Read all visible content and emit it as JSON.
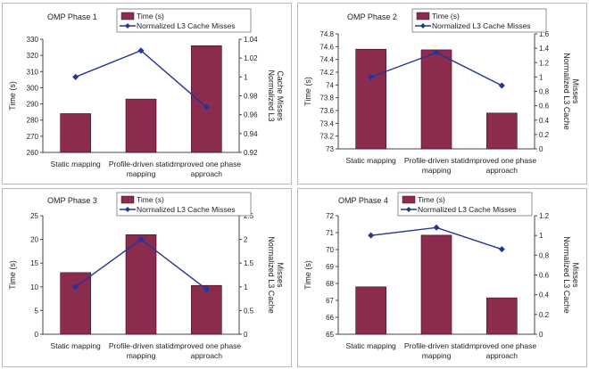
{
  "chart_data": [
    {
      "type": "bar",
      "title": "OMP Phase 1",
      "categories": [
        [
          "Static mapping"
        ],
        [
          "Profile-driven static",
          "mapping"
        ],
        [
          "Improved one phase",
          "approach"
        ]
      ],
      "ylabel": "Time (s)",
      "y2label": [
        "Normalized L3",
        "Cache Misses"
      ],
      "ylim": [
        260,
        330
      ],
      "yticks": [
        "260",
        "270",
        "280",
        "290",
        "300",
        "310",
        "320",
        "330"
      ],
      "y2lim": [
        0.92,
        1.04
      ],
      "y2ticks": [
        "0.92",
        "0.94",
        "0.96",
        "0.98",
        "1",
        "1.02",
        "1.04"
      ],
      "series": [
        {
          "name": "Time (s)",
          "kind": "bar",
          "axis": "left",
          "values": [
            284,
            293,
            326
          ]
        },
        {
          "name": "Normalized L3 Cache Misses",
          "kind": "line",
          "axis": "right",
          "values": [
            1.0,
            1.028,
            0.968
          ]
        }
      ],
      "legend_position": "top-right",
      "colors": {
        "bar": "#8b2b4e",
        "line": "#24349c"
      }
    },
    {
      "type": "bar",
      "title": "OMP Phase 2",
      "categories": [
        [
          "Static mapping"
        ],
        [
          "Profile-driven static",
          "mapping"
        ],
        [
          "Improved one phase",
          "approach"
        ]
      ],
      "ylabel": "Time (s)",
      "y2label": [
        "Normalized L3 Cache",
        "Misses"
      ],
      "ylim": [
        73.0,
        74.8
      ],
      "yticks": [
        "73",
        "73.2",
        "73.4",
        "73.6",
        "73.8",
        "74",
        "74.2",
        "74.4",
        "74.6",
        "74.8"
      ],
      "y2lim": [
        0,
        1.6
      ],
      "y2ticks": [
        "0",
        "0.2",
        "0.4",
        "0.6",
        "0.8",
        "1",
        "1.2",
        "1.4",
        "1.6"
      ],
      "series": [
        {
          "name": "Time (s)",
          "kind": "bar",
          "axis": "left",
          "values": [
            74.56,
            74.55,
            73.56
          ]
        },
        {
          "name": "Normalized L3 Cache Misses",
          "kind": "line",
          "axis": "right",
          "values": [
            1.0,
            1.34,
            0.88
          ]
        }
      ],
      "legend_position": "top-right",
      "colors": {
        "bar": "#8b2b4e",
        "line": "#24349c"
      }
    },
    {
      "type": "bar",
      "title": "OMP Phase 3",
      "categories": [
        [
          "Static mapping"
        ],
        [
          "Profile-driven static",
          "mapping"
        ],
        [
          "Improved one phase",
          "approach"
        ]
      ],
      "ylabel": "Time (s)",
      "y2label": [
        "Normalized L3 Cache",
        "Misses"
      ],
      "ylim": [
        0,
        25
      ],
      "yticks": [
        "0",
        "5",
        "10",
        "15",
        "20",
        "25"
      ],
      "y2lim": [
        0,
        2.5
      ],
      "y2ticks": [
        "0",
        "0.5",
        "1",
        "1.5",
        "2",
        "2.5"
      ],
      "series": [
        {
          "name": "Time (s)",
          "kind": "bar",
          "axis": "left",
          "values": [
            13,
            21,
            10.3
          ]
        },
        {
          "name": "Normalized L3 Cache Misses",
          "kind": "line",
          "axis": "right",
          "values": [
            1.0,
            2.0,
            0.95
          ]
        }
      ],
      "legend_position": "top-right",
      "colors": {
        "bar": "#8b2b4e",
        "line": "#24349c"
      }
    },
    {
      "type": "bar",
      "title": "OMP Phase 4",
      "categories": [
        [
          "Static mapping"
        ],
        [
          "Profile-driven static",
          "mapping"
        ],
        [
          "Improved one phase",
          "approach"
        ]
      ],
      "ylabel": "Time (s)",
      "y2label": [
        "Normalized L3 Cache",
        "Misses"
      ],
      "ylim": [
        65,
        72
      ],
      "yticks": [
        "65",
        "66",
        "67",
        "68",
        "69",
        "70",
        "71",
        "72"
      ],
      "y2lim": [
        0,
        1.2
      ],
      "y2ticks": [
        "0",
        "0.2",
        "0.4",
        "0.6",
        "0.8",
        "1",
        "1.2"
      ],
      "series": [
        {
          "name": "Time (s)",
          "kind": "bar",
          "axis": "left",
          "values": [
            67.8,
            70.85,
            67.15
          ]
        },
        {
          "name": "Normalized L3 Cache Misses",
          "kind": "line",
          "axis": "right",
          "values": [
            1.0,
            1.08,
            0.86
          ]
        }
      ],
      "legend_position": "top-right",
      "colors": {
        "bar": "#8b2b4e",
        "line": "#24349c"
      }
    }
  ]
}
